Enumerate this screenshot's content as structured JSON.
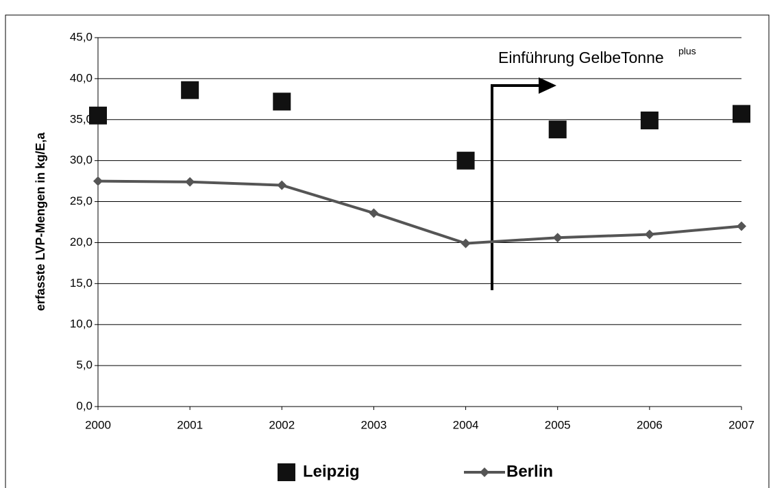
{
  "chart_data": {
    "type": "line",
    "y_label": "erfasste LVP-Mengen in kg/E,a",
    "annotation": "Einführung GelbeTonne",
    "annotation_superscript": "plus",
    "categories": [
      "2000",
      "2001",
      "2002",
      "2003",
      "2004",
      "2005",
      "2006",
      "2007"
    ],
    "series": [
      {
        "name": "Leipzig",
        "type": "scatter",
        "color": "#111111",
        "values": [
          35.5,
          38.6,
          37.2,
          null,
          30.0,
          33.8,
          34.9,
          35.7
        ]
      },
      {
        "name": "Berlin",
        "type": "line",
        "color": "#555555",
        "values": [
          27.5,
          27.4,
          27.0,
          23.6,
          19.9,
          20.6,
          21.0,
          22.0
        ]
      }
    ],
    "ylim": [
      0,
      45
    ],
    "yticks": [
      {
        "value": 0,
        "label": "0,0"
      },
      {
        "value": 5,
        "label": "5,0"
      },
      {
        "value": 10,
        "label": "10,0"
      },
      {
        "value": 15,
        "label": "15,0"
      },
      {
        "value": 20,
        "label": "20,0"
      },
      {
        "value": 25,
        "label": "25,0"
      },
      {
        "value": 30,
        "label": "30,0"
      },
      {
        "value": 35,
        "label": "35,0"
      },
      {
        "value": 40,
        "label": "40,0"
      },
      {
        "value": 45,
        "label": "45,0"
      }
    ],
    "grid": true,
    "legend": "bottom"
  }
}
